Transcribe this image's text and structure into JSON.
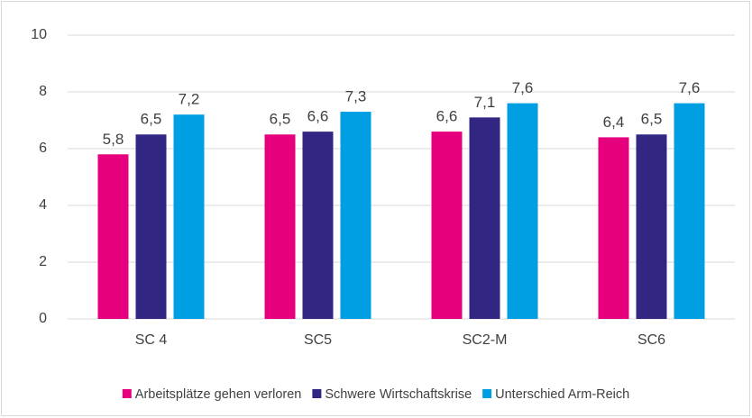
{
  "chart_data": {
    "type": "bar",
    "categories": [
      "SC 4",
      "SC5",
      "SC2-M",
      "SC6"
    ],
    "series": [
      {
        "name": "Arbeitsplätze gehen verloren",
        "color": "#e6007e",
        "values": [
          5.8,
          6.5,
          6.6,
          6.4
        ],
        "value_labels": [
          "5,8",
          "6,5",
          "6,6",
          "6,4"
        ]
      },
      {
        "name": "Schwere Wirtschaftskrise",
        "color": "#312783",
        "values": [
          6.5,
          6.6,
          7.1,
          6.5
        ],
        "value_labels": [
          "6,5",
          "6,6",
          "7,1",
          "6,5"
        ]
      },
      {
        "name": "Unterschied Arm-Reich",
        "color": "#009fe3",
        "values": [
          7.2,
          7.3,
          7.6,
          7.6
        ],
        "value_labels": [
          "7,2",
          "7,3",
          "7,6",
          "7,6"
        ]
      }
    ],
    "ylim": [
      0,
      10
    ],
    "yticks": [
      0,
      2,
      4,
      6,
      8,
      10
    ],
    "grid": true,
    "legend": "bottom"
  }
}
